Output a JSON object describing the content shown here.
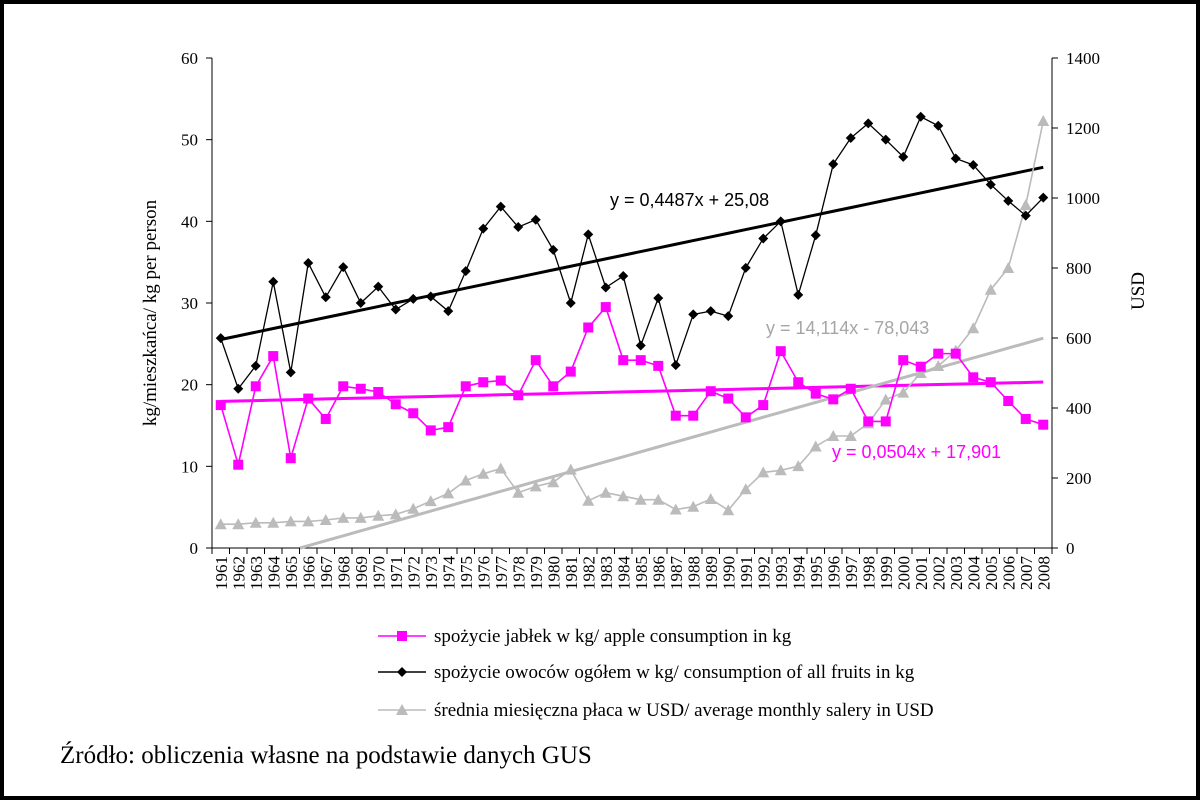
{
  "chart_data": {
    "type": "line",
    "years": [
      "1961",
      "1962",
      "1963",
      "1964",
      "1965",
      "1966",
      "1967",
      "1968",
      "1969",
      "1970",
      "1971",
      "1972",
      "1973",
      "1974",
      "1975",
      "1976",
      "1977",
      "1978",
      "1979",
      "1980",
      "1981",
      "1982",
      "1983",
      "1984",
      "1985",
      "1986",
      "1987",
      "1988",
      "1989",
      "1990",
      "1991",
      "1992",
      "1993",
      "1994",
      "1995",
      "1996",
      "1997",
      "1998",
      "1999",
      "2000",
      "2001",
      "2002",
      "2003",
      "2004",
      "2005",
      "2006",
      "2007",
      "2008"
    ],
    "ylabel_left": "kg/mieszkańca/  kg per person",
    "ylabel_right": "USD",
    "ylim_left": [
      0,
      60
    ],
    "ylim_right": [
      0,
      1400
    ],
    "yticks_left": [
      "0",
      "10",
      "20",
      "30",
      "40",
      "50",
      "60"
    ],
    "yticks_right": [
      "0",
      "200",
      "400",
      "600",
      "800",
      "1000",
      "1200",
      "1400"
    ],
    "series": [
      {
        "name": "spożycie jabłek w kg/ apple consumption in kg",
        "axis": "left",
        "color": "#ff00ff",
        "marker": "square",
        "values": [
          17.5,
          10.2,
          19.8,
          23.5,
          11.0,
          18.3,
          15.8,
          19.8,
          19.5,
          19.1,
          17.6,
          16.5,
          14.4,
          14.8,
          19.8,
          20.3,
          20.5,
          18.7,
          23.0,
          19.8,
          21.6,
          27.0,
          29.5,
          23.0,
          23.0,
          22.3,
          16.2,
          16.2,
          19.2,
          18.3,
          16.0,
          17.5,
          24.1,
          20.3,
          18.9,
          18.2,
          19.5,
          15.5,
          15.5,
          23.0,
          22.2,
          23.8,
          23.8,
          20.9,
          20.3,
          18.0,
          15.8,
          15.1
        ]
      },
      {
        "name": "spożycie owoców ogółem w kg/ consumption of all fruits in kg",
        "axis": "left",
        "color": "#000000",
        "marker": "diamond",
        "values": [
          25.7,
          19.5,
          22.3,
          32.6,
          21.5,
          34.9,
          30.7,
          34.4,
          30.0,
          32.0,
          29.2,
          30.5,
          30.8,
          29.0,
          33.9,
          39.1,
          41.8,
          39.3,
          40.2,
          36.5,
          30.0,
          38.4,
          31.9,
          33.3,
          24.8,
          30.6,
          22.4,
          28.6,
          29.0,
          28.4,
          34.3,
          37.9,
          40.0,
          31.0,
          38.3,
          47.0,
          50.2,
          52.0,
          50.0,
          47.9,
          52.8,
          51.7,
          47.7,
          46.9,
          44.5,
          42.5,
          40.7,
          42.9
        ]
      },
      {
        "name": "średnia miesięczna płaca w USD/ average monthly salery in USD",
        "axis": "right",
        "color": "#bbbbbb",
        "marker": "triangle",
        "values": [
          68,
          68,
          72,
          72,
          76,
          76,
          80,
          86,
          86,
          92,
          96,
          112,
          134,
          156,
          193,
          212,
          227,
          158,
          176,
          188,
          224,
          135,
          158,
          148,
          138,
          138,
          110,
          118,
          140,
          108,
          168,
          216,
          222,
          234,
          290,
          320,
          320,
          356,
          424,
          444,
          500,
          520,
          564,
          628,
          738,
          800,
          980,
          1220
        ]
      }
    ],
    "trendlines": [
      {
        "label": "y = 0,4487x + 25,08",
        "axis": "left",
        "slope": 0.4487,
        "intercept": 25.08,
        "color": "#000000"
      },
      {
        "label": "y = 0,0504x + 17,901",
        "axis": "left",
        "slope": 0.0504,
        "intercept": 17.901,
        "color": "#ff00ff"
      },
      {
        "label": "y = 14,114x - 78,043",
        "axis": "right",
        "slope": 14.114,
        "intercept": -78.043,
        "color": "#bbbbbb"
      }
    ],
    "legend": [
      "spożycie jabłek w kg/ apple consumption in kg",
      "spożycie owoców ogółem w kg/ consumption of all fruits in kg",
      "średnia miesięczna płaca w USD/ average monthly salery in USD"
    ]
  },
  "source": "Źródło: obliczenia własne na podstawie danych GUS"
}
